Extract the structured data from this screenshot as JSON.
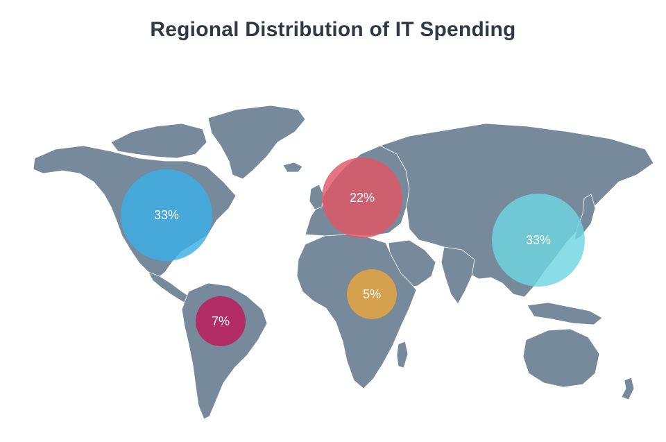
{
  "title": "Regional Distribution of IT Spending",
  "regions": [
    {
      "id": "north-america",
      "value": "33%",
      "color": "#3aaee6"
    },
    {
      "id": "europe",
      "value": "22%",
      "color": "#e05565"
    },
    {
      "id": "asia-pacific",
      "value": "33%",
      "color": "#6fd6e0"
    },
    {
      "id": "latin-america",
      "value": "7%",
      "color": "#c0195a"
    },
    {
      "id": "africa-middle-east",
      "value": "5%",
      "color": "#eba63b"
    }
  ],
  "colors": {
    "land": "#778a9b",
    "title": "#2f3a47",
    "background": "#ffffff"
  }
}
